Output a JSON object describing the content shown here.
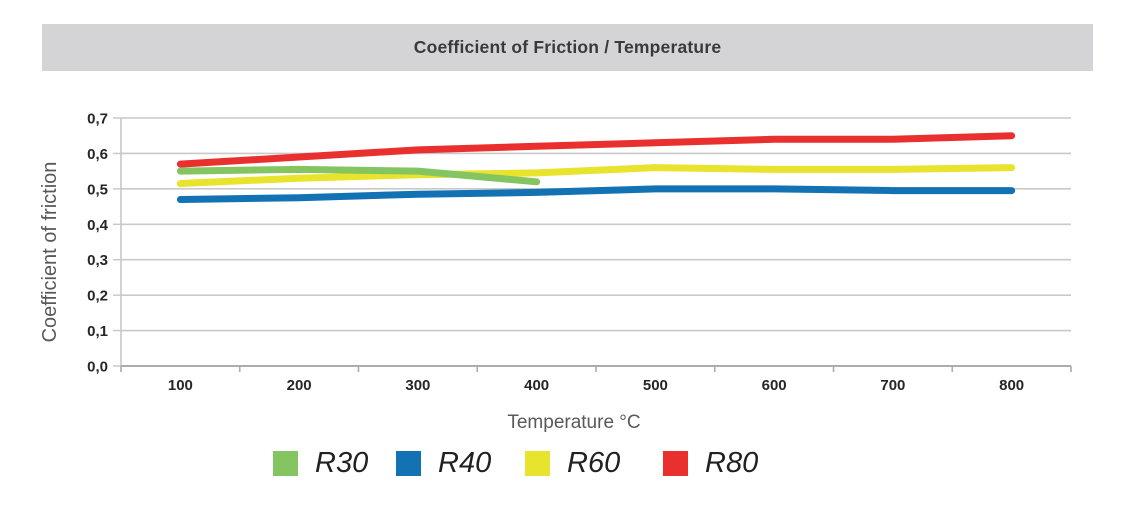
{
  "chart_data": {
    "type": "line",
    "title": "Coefficient of Friction / Temperature",
    "xlabel": "Temperature °C",
    "ylabel": "Coefficient of friction",
    "x": [
      100,
      200,
      300,
      400,
      500,
      600,
      700,
      800
    ],
    "x_tick_labels": [
      "100",
      "200",
      "300",
      "400",
      "500",
      "600",
      "700",
      "800"
    ],
    "y_ticks": [
      {
        "v": 0.0,
        "label": "0,0"
      },
      {
        "v": 0.1,
        "label": "0,1"
      },
      {
        "v": 0.2,
        "label": "0,2"
      },
      {
        "v": 0.3,
        "label": "0,3"
      },
      {
        "v": 0.4,
        "label": "0,4"
      },
      {
        "v": 0.5,
        "label": "0,5"
      },
      {
        "v": 0.6,
        "label": "0,6"
      },
      {
        "v": 0.7,
        "label": "0,7"
      }
    ],
    "ylim": [
      0,
      0.7
    ],
    "grid": true,
    "legend_position": "bottom",
    "draw_order": [
      "R60",
      "R30",
      "R40",
      "R80"
    ],
    "series": [
      {
        "name": "R30",
        "color": "#85C561",
        "values": [
          0.55,
          0.555,
          0.55,
          0.52,
          null,
          null,
          null,
          null
        ]
      },
      {
        "name": "R40",
        "color": "#1272B4",
        "values": [
          0.47,
          0.475,
          0.485,
          0.49,
          0.5,
          0.5,
          0.495,
          0.495
        ]
      },
      {
        "name": "R60",
        "color": "#E8E32C",
        "values": [
          0.515,
          0.53,
          0.54,
          0.545,
          0.56,
          0.555,
          0.555,
          0.56
        ]
      },
      {
        "name": "R80",
        "color": "#EA302E",
        "values": [
          0.57,
          0.59,
          0.61,
          0.62,
          0.63,
          0.64,
          0.64,
          0.65
        ]
      }
    ]
  },
  "colors": {
    "background": "#FFFFFF",
    "title_bar_bg": "#D4D4D6",
    "title_text": "#3A3A3A",
    "grid": "#C9C9C9",
    "axis": "#ACACAC",
    "y_axis_line": "#C6C6C6",
    "tick_text": "#262626",
    "axis_title_text": "#595959",
    "legend_text": "#212121"
  }
}
